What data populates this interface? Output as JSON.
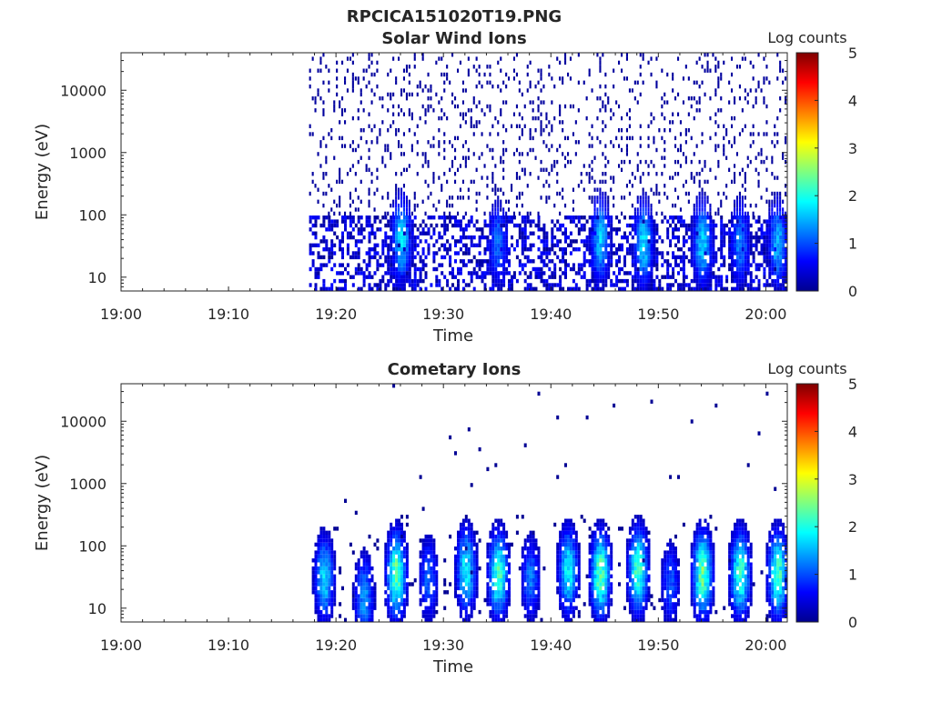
{
  "figure_title": "RPCICA151020T19.PNG",
  "colorbar_colors": [
    "#00008f",
    "#0000ff",
    "#007fff",
    "#00ffff",
    "#7fff7f",
    "#ffff00",
    "#ff7f00",
    "#ff0000",
    "#7f0000"
  ],
  "chart_data": [
    {
      "type": "heatmap",
      "title": "Solar Wind Ions",
      "xlabel": "Time",
      "ylabel": "Energy (eV)",
      "x_ticks": [
        "19:00",
        "19:10",
        "19:20",
        "19:30",
        "19:40",
        "19:50",
        "20:00"
      ],
      "x_range": [
        "19:00",
        "20:02"
      ],
      "y_scale": "log",
      "y_ticks": [
        "10",
        "100",
        "1000",
        "10000"
      ],
      "y_range": [
        6,
        40000
      ],
      "colorbar": {
        "label": "Log counts",
        "ticks": [
          "0",
          "1",
          "2",
          "3",
          "4",
          "5"
        ],
        "range": [
          0,
          5
        ],
        "colormap": "jet"
      },
      "data_start": "19:17.5",
      "data_end": "20:02",
      "noise_floor_log_counts": 0.15,
      "bursts": [
        {
          "time": "19:26",
          "peak_log_counts": 2.0,
          "peak_energy_eV": 40
        },
        {
          "time": "19:35",
          "peak_log_counts": 1.4,
          "peak_energy_eV": 35
        },
        {
          "time": "19:44.5",
          "peak_log_counts": 1.9,
          "peak_energy_eV": 40
        },
        {
          "time": "19:48.5",
          "peak_log_counts": 2.0,
          "peak_energy_eV": 35
        },
        {
          "time": "19:54",
          "peak_log_counts": 2.0,
          "peak_energy_eV": 35
        },
        {
          "time": "19:57.5",
          "peak_log_counts": 1.5,
          "peak_energy_eV": 35
        },
        {
          "time": "20:01",
          "peak_log_counts": 1.8,
          "peak_energy_eV": 35
        }
      ]
    },
    {
      "type": "heatmap",
      "title": "Cometary Ions",
      "xlabel": "Time",
      "ylabel": "Energy (eV)",
      "x_ticks": [
        "19:00",
        "19:10",
        "19:20",
        "19:30",
        "19:40",
        "19:50",
        "20:00"
      ],
      "x_range": [
        "19:00",
        "20:02"
      ],
      "y_scale": "log",
      "y_ticks": [
        "10",
        "100",
        "1000",
        "10000"
      ],
      "y_range": [
        6,
        40000
      ],
      "colorbar": {
        "label": "Log counts",
        "ticks": [
          "0",
          "1",
          "2",
          "3",
          "4",
          "5"
        ],
        "range": [
          0,
          5
        ],
        "colormap": "jet"
      },
      "data_start": "19:17.5",
      "data_end": "20:02",
      "bursts": [
        {
          "time": "19:18.8",
          "peak_log_counts": 2.0,
          "peak_energy_eV": 30
        },
        {
          "time": "19:22.5",
          "peak_log_counts": 1.6,
          "peak_energy_eV": 15
        },
        {
          "time": "19:25.5",
          "peak_log_counts": 2.8,
          "peak_energy_eV": 35
        },
        {
          "time": "19:28.5",
          "peak_log_counts": 1.3,
          "peak_energy_eV": 30
        },
        {
          "time": "19:32",
          "peak_log_counts": 2.2,
          "peak_energy_eV": 40
        },
        {
          "time": "19:35",
          "peak_log_counts": 2.6,
          "peak_energy_eV": 35
        },
        {
          "time": "19:38",
          "peak_log_counts": 1.4,
          "peak_energy_eV": 30
        },
        {
          "time": "19:41.5",
          "peak_log_counts": 2.2,
          "peak_energy_eV": 40
        },
        {
          "time": "19:44.5",
          "peak_log_counts": 2.8,
          "peak_energy_eV": 35
        },
        {
          "time": "19:48",
          "peak_log_counts": 2.6,
          "peak_energy_eV": 40
        },
        {
          "time": "19:51",
          "peak_log_counts": 1.2,
          "peak_energy_eV": 25
        },
        {
          "time": "19:54",
          "peak_log_counts": 2.8,
          "peak_energy_eV": 35
        },
        {
          "time": "19:57.5",
          "peak_log_counts": 2.6,
          "peak_energy_eV": 35
        },
        {
          "time": "20:01",
          "peak_log_counts": 2.6,
          "peak_energy_eV": 35
        }
      ]
    }
  ]
}
